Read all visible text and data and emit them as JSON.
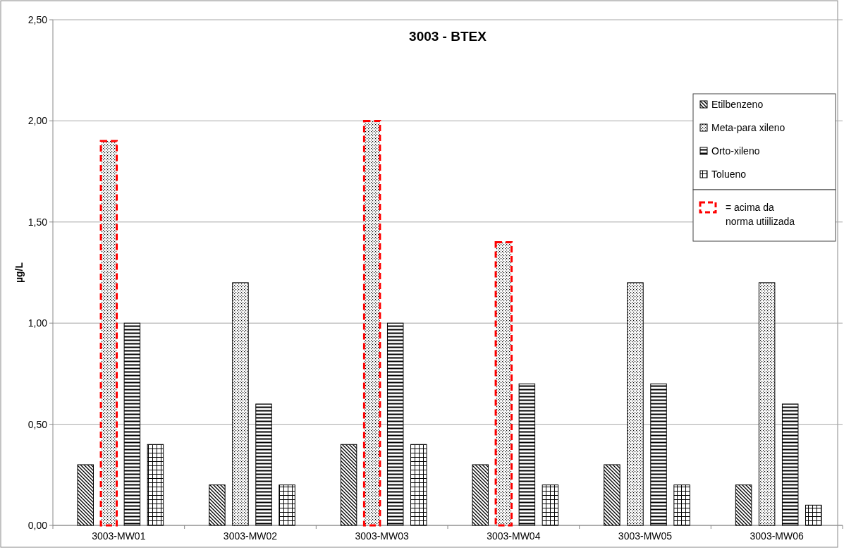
{
  "chart_data": {
    "type": "bar",
    "title": "3003 - BTEX",
    "ylabel": "µg/L",
    "categories": [
      "3003-MW01",
      "3003-MW02",
      "3003-MW03",
      "3003-MW04",
      "3003-MW05",
      "3003-MW06"
    ],
    "series": [
      {
        "name": "Etilbenzeno",
        "color": "#000000",
        "values": [
          0.3,
          0.2,
          0.4,
          0.3,
          0.3,
          0.2
        ]
      },
      {
        "name": "Meta-para xileno",
        "color": "#000000",
        "colors": [
          "#ff0000",
          "#000000",
          "#ff0000",
          "#ff0000",
          "#000000",
          "#000000"
        ],
        "values": [
          1.9,
          1.2,
          2.0,
          1.4,
          1.2,
          1.2
        ]
      },
      {
        "name": "Orto-xileno",
        "color": "#000000",
        "values": [
          1.0,
          0.6,
          1.0,
          0.7,
          0.7,
          0.6
        ]
      },
      {
        "name": "Tolueno",
        "color": "#000000",
        "values": [
          0.4,
          0.2,
          0.4,
          0.2,
          0.2,
          0.1
        ]
      }
    ],
    "ylim": [
      0,
      2.5
    ],
    "yticks": [
      {
        "value": 0,
        "label": "0,00"
      },
      {
        "value": 0.5,
        "label": "0,50"
      },
      {
        "value": 1,
        "label": "1,00"
      },
      {
        "value": 1.5,
        "label": "1,50"
      },
      {
        "value": 2,
        "label": "2,00"
      },
      {
        "value": 2.5,
        "label": "2,50"
      }
    ],
    "grid": "y",
    "legend": "top right",
    "annotations": [
      "=  acima da norma utiilizada"
    ]
  }
}
